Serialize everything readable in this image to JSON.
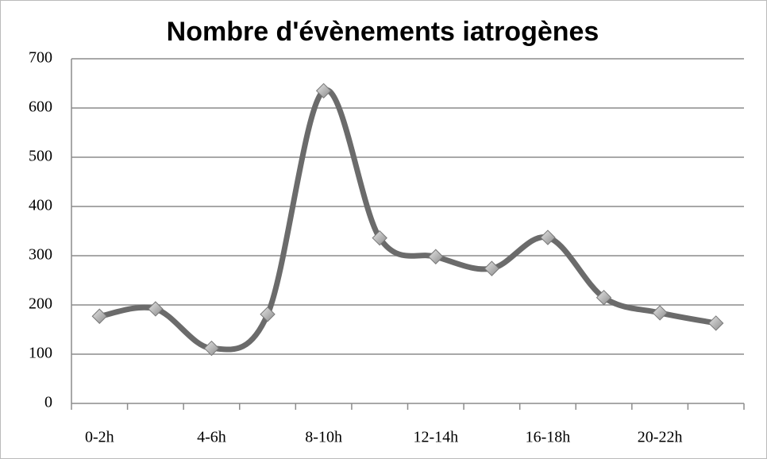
{
  "chart_data": {
    "type": "line",
    "title": "Nombre d'évènements iatrogènes",
    "categories": [
      "0-2h",
      null,
      "4-6h",
      null,
      "8-10h",
      null,
      "12-14h",
      null,
      "16-18h",
      null,
      "20-22h",
      null
    ],
    "values": [
      177,
      192,
      112,
      181,
      635,
      336,
      298,
      274,
      337,
      215,
      184,
      163
    ],
    "color": "#6b6b6b",
    "ylim": [
      0,
      700
    ],
    "yticks": [
      0,
      100,
      200,
      300,
      400,
      500,
      600,
      700
    ],
    "grid": true
  }
}
